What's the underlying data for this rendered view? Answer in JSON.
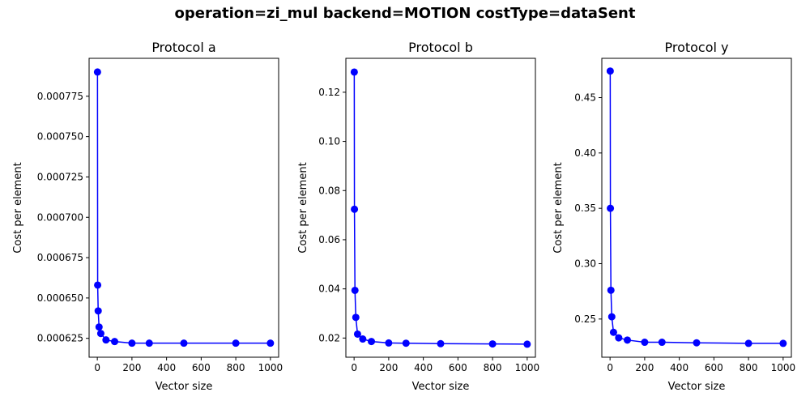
{
  "figure": {
    "suptitle": "operation=zi_mul backend=MOTION costType=dataSent"
  },
  "chart_data": [
    {
      "type": "line",
      "title": "Protocol a",
      "xlabel": "Vector size",
      "ylabel": "Cost per element",
      "xlim": [
        -47.5,
        1047.5
      ],
      "ylim": [
        0.0006133,
        0.0007985
      ],
      "xticks": [
        0,
        200,
        400,
        600,
        800,
        1000
      ],
      "xtick_labels": [
        "0",
        "200",
        "400",
        "600",
        "800",
        "1000"
      ],
      "yticks": [
        0.000625,
        0.00065,
        0.000675,
        0.0007,
        0.000725,
        0.00075,
        0.000775
      ],
      "ytick_labels": [
        "0.000625",
        "0.000650",
        "0.000675",
        "0.000700",
        "0.000725",
        "0.000750",
        "0.000775"
      ],
      "grid": false,
      "series": [
        {
          "color": "#0000ff",
          "marker": "circle",
          "x": [
            1,
            2,
            5,
            10,
            20,
            50,
            100,
            200,
            300,
            500,
            800,
            1000
          ],
          "y": [
            0.00079,
            0.000658,
            0.000642,
            0.000632,
            0.000628,
            0.000624,
            0.000623,
            0.000622,
            0.000622,
            0.000622,
            0.000622,
            0.000622
          ]
        }
      ]
    },
    {
      "type": "line",
      "title": "Protocol b",
      "xlabel": "Vector size",
      "ylabel": "Cost per element",
      "xlim": [
        -47.5,
        1047.5
      ],
      "ylim": [
        0.0122,
        0.1338
      ],
      "xticks": [
        0,
        200,
        400,
        600,
        800,
        1000
      ],
      "xtick_labels": [
        "0",
        "200",
        "400",
        "600",
        "800",
        "1000"
      ],
      "yticks": [
        0.02,
        0.04,
        0.06,
        0.08,
        0.1,
        0.12
      ],
      "ytick_labels": [
        "0.02",
        "0.04",
        "0.06",
        "0.08",
        "0.10",
        "0.12"
      ],
      "grid": false,
      "series": [
        {
          "color": "#0000ff",
          "marker": "circle",
          "x": [
            1,
            2,
            5,
            10,
            20,
            50,
            100,
            200,
            300,
            500,
            800,
            1000
          ],
          "y": [
            0.1282,
            0.0724,
            0.0394,
            0.0284,
            0.0216,
            0.0196,
            0.0186,
            0.018,
            0.0179,
            0.0177,
            0.0176,
            0.0175
          ]
        }
      ]
    },
    {
      "type": "line",
      "title": "Protocol y",
      "xlabel": "Vector size",
      "ylabel": "Cost per element",
      "xlim": [
        -47.5,
        1047.5
      ],
      "ylim": [
        0.2155,
        0.4855
      ],
      "xticks": [
        0,
        200,
        400,
        600,
        800,
        1000
      ],
      "xtick_labels": [
        "0",
        "200",
        "400",
        "600",
        "800",
        "1000"
      ],
      "yticks": [
        0.25,
        0.3,
        0.35,
        0.4,
        0.45
      ],
      "ytick_labels": [
        "0.25",
        "0.30",
        "0.35",
        "0.40",
        "0.45"
      ],
      "grid": false,
      "series": [
        {
          "color": "#0000ff",
          "marker": "circle",
          "x": [
            1,
            2,
            5,
            10,
            20,
            50,
            100,
            200,
            300,
            500,
            800,
            1000
          ],
          "y": [
            0.474,
            0.35,
            0.276,
            0.252,
            0.238,
            0.233,
            0.231,
            0.229,
            0.229,
            0.2285,
            0.228,
            0.228
          ]
        }
      ]
    }
  ]
}
